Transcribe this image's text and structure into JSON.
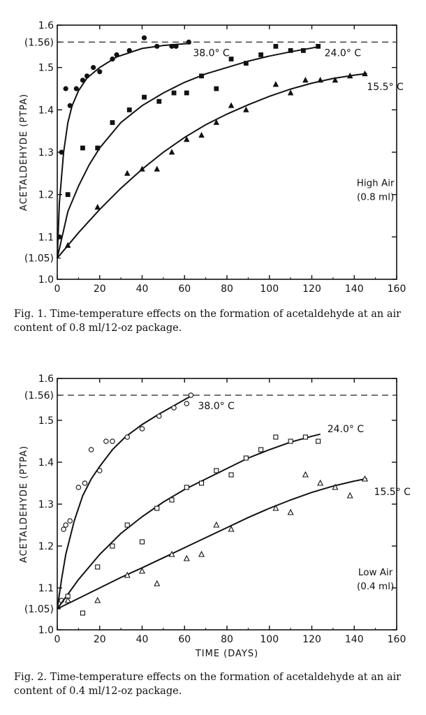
{
  "chart_data": [
    {
      "type": "scatter",
      "title": "",
      "xlabel": "",
      "ylabel": "ACETALDEHYDE (PTPA)",
      "xlim": [
        0,
        160
      ],
      "ylim": [
        1.0,
        1.6
      ],
      "x_ticks": [
        "0",
        "20",
        "40",
        "60",
        "80",
        "100",
        "120",
        "140",
        "160"
      ],
      "y_ticks": [
        "1.0",
        "1.1",
        "1.2",
        "1.3",
        "1.4",
        "1.5",
        "1.6"
      ],
      "y_extra_ticks": [
        {
          "value": 1.05,
          "label": "(1.05)"
        },
        {
          "value": 1.56,
          "label": "(1.56)"
        }
      ],
      "reference_line": {
        "value": 1.56,
        "style": "dashed"
      },
      "annotation": {
        "line1": "High Air",
        "line2": "(0.8 ml)"
      },
      "marker_fill": "filled",
      "series": [
        {
          "name": "38.0° C",
          "marker": "circle",
          "points": [
            [
              1,
              1.1
            ],
            [
              2,
              1.3
            ],
            [
              4,
              1.45
            ],
            [
              6,
              1.41
            ],
            [
              9,
              1.45
            ],
            [
              12,
              1.47
            ],
            [
              14,
              1.48
            ],
            [
              17,
              1.5
            ],
            [
              20,
              1.49
            ],
            [
              26,
              1.52
            ],
            [
              28,
              1.53
            ],
            [
              34,
              1.54
            ],
            [
              41,
              1.57
            ],
            [
              47,
              1.55
            ],
            [
              54,
              1.55
            ],
            [
              56,
              1.55
            ],
            [
              62,
              1.56
            ]
          ],
          "curve": [
            [
              0,
              1.05
            ],
            [
              1,
              1.18
            ],
            [
              3,
              1.3
            ],
            [
              5,
              1.37
            ],
            [
              7,
              1.41
            ],
            [
              10,
              1.445
            ],
            [
              14,
              1.475
            ],
            [
              20,
              1.5
            ],
            [
              28,
              1.525
            ],
            [
              40,
              1.545
            ],
            [
              50,
              1.552
            ],
            [
              60,
              1.556
            ],
            [
              63,
              1.557
            ]
          ]
        },
        {
          "name": "24.0° C",
          "marker": "square",
          "points": [
            [
              5,
              1.2
            ],
            [
              12,
              1.31
            ],
            [
              19,
              1.31
            ],
            [
              26,
              1.37
            ],
            [
              34,
              1.4
            ],
            [
              41,
              1.43
            ],
            [
              48,
              1.42
            ],
            [
              55,
              1.44
            ],
            [
              61,
              1.44
            ],
            [
              68,
              1.48
            ],
            [
              75,
              1.45
            ],
            [
              82,
              1.52
            ],
            [
              89,
              1.51
            ],
            [
              96,
              1.53
            ],
            [
              103,
              1.55
            ],
            [
              110,
              1.54
            ],
            [
              116,
              1.54
            ],
            [
              123,
              1.55
            ]
          ],
          "curve": [
            [
              0,
              1.05
            ],
            [
              5,
              1.16
            ],
            [
              10,
              1.22
            ],
            [
              15,
              1.27
            ],
            [
              20,
              1.31
            ],
            [
              30,
              1.37
            ],
            [
              40,
              1.41
            ],
            [
              50,
              1.44
            ],
            [
              60,
              1.465
            ],
            [
              70,
              1.485
            ],
            [
              80,
              1.5
            ],
            [
              90,
              1.515
            ],
            [
              100,
              1.527
            ],
            [
              110,
              1.537
            ],
            [
              120,
              1.546
            ],
            [
              124,
              1.55
            ]
          ]
        },
        {
          "name": "15.5° C",
          "marker": "triangle",
          "points": [
            [
              5,
              1.08
            ],
            [
              19,
              1.17
            ],
            [
              33,
              1.25
            ],
            [
              40,
              1.26
            ],
            [
              47,
              1.26
            ],
            [
              54,
              1.3
            ],
            [
              61,
              1.33
            ],
            [
              68,
              1.34
            ],
            [
              75,
              1.37
            ],
            [
              82,
              1.41
            ],
            [
              89,
              1.4
            ],
            [
              103,
              1.46
            ],
            [
              110,
              1.44
            ],
            [
              117,
              1.47
            ],
            [
              124,
              1.47
            ],
            [
              131,
              1.47
            ],
            [
              138,
              1.48
            ],
            [
              145,
              1.485
            ]
          ],
          "curve": [
            [
              0,
              1.05
            ],
            [
              10,
              1.11
            ],
            [
              20,
              1.165
            ],
            [
              30,
              1.215
            ],
            [
              40,
              1.26
            ],
            [
              50,
              1.3
            ],
            [
              60,
              1.335
            ],
            [
              70,
              1.365
            ],
            [
              80,
              1.39
            ],
            [
              90,
              1.412
            ],
            [
              100,
              1.432
            ],
            [
              110,
              1.449
            ],
            [
              120,
              1.463
            ],
            [
              130,
              1.474
            ],
            [
              140,
              1.482
            ],
            [
              146,
              1.486
            ]
          ]
        }
      ]
    },
    {
      "type": "scatter",
      "title": "",
      "xlabel": "TIME (DAYS)",
      "ylabel": "ACETALDEHYDE (PTPA)",
      "xlim": [
        0,
        160
      ],
      "ylim": [
        1.0,
        1.6
      ],
      "x_ticks": [
        "0",
        "20",
        "40",
        "60",
        "80",
        "100",
        "120",
        "140",
        "160"
      ],
      "y_ticks": [
        "1.0",
        "1.1",
        "1.2",
        "1.3",
        "1.4",
        "1.5",
        "1.6"
      ],
      "y_extra_ticks": [
        {
          "value": 1.05,
          "label": "(1.05)"
        },
        {
          "value": 1.56,
          "label": "(1.56)"
        }
      ],
      "reference_line": {
        "value": 1.56,
        "style": "dashed"
      },
      "annotation": {
        "line1": "Low Air",
        "line2": "(0.4 ml)"
      },
      "marker_fill": "open",
      "series": [
        {
          "name": "38.0° C",
          "marker": "circle",
          "points": [
            [
              2,
              1.07
            ],
            [
              3,
              1.24
            ],
            [
              4,
              1.25
            ],
            [
              6,
              1.26
            ],
            [
              10,
              1.34
            ],
            [
              13,
              1.35
            ],
            [
              16,
              1.43
            ],
            [
              20,
              1.38
            ],
            [
              23,
              1.45
            ],
            [
              26,
              1.45
            ],
            [
              33,
              1.46
            ],
            [
              40,
              1.48
            ],
            [
              48,
              1.51
            ],
            [
              55,
              1.53
            ],
            [
              61,
              1.54
            ],
            [
              63,
              1.56
            ]
          ],
          "curve": [
            [
              0,
              1.05
            ],
            [
              2,
              1.12
            ],
            [
              4,
              1.18
            ],
            [
              8,
              1.26
            ],
            [
              12,
              1.32
            ],
            [
              16,
              1.36
            ],
            [
              20,
              1.39
            ],
            [
              26,
              1.43
            ],
            [
              32,
              1.46
            ],
            [
              40,
              1.49
            ],
            [
              48,
              1.515
            ],
            [
              56,
              1.538
            ],
            [
              62,
              1.555
            ],
            [
              64,
              1.56
            ]
          ]
        },
        {
          "name": "24.0° C",
          "marker": "square",
          "points": [
            [
              5,
              1.08
            ],
            [
              12,
              1.04
            ],
            [
              19,
              1.15
            ],
            [
              26,
              1.2
            ],
            [
              33,
              1.25
            ],
            [
              40,
              1.21
            ],
            [
              47,
              1.29
            ],
            [
              54,
              1.31
            ],
            [
              61,
              1.34
            ],
            [
              68,
              1.35
            ],
            [
              75,
              1.38
            ],
            [
              82,
              1.37
            ],
            [
              89,
              1.41
            ],
            [
              96,
              1.43
            ],
            [
              103,
              1.46
            ],
            [
              110,
              1.45
            ],
            [
              117,
              1.46
            ],
            [
              123,
              1.45
            ]
          ],
          "curve": [
            [
              0,
              1.05
            ],
            [
              10,
              1.12
            ],
            [
              20,
              1.18
            ],
            [
              30,
              1.23
            ],
            [
              40,
              1.27
            ],
            [
              50,
              1.305
            ],
            [
              60,
              1.335
            ],
            [
              70,
              1.36
            ],
            [
              80,
              1.385
            ],
            [
              90,
              1.41
            ],
            [
              100,
              1.43
            ],
            [
              110,
              1.448
            ],
            [
              120,
              1.462
            ],
            [
              124,
              1.467
            ]
          ]
        },
        {
          "name": "15.5° C",
          "marker": "triangle",
          "points": [
            [
              5,
              1.07
            ],
            [
              19,
              1.07
            ],
            [
              33,
              1.13
            ],
            [
              40,
              1.14
            ],
            [
              47,
              1.11
            ],
            [
              54,
              1.18
            ],
            [
              61,
              1.17
            ],
            [
              68,
              1.18
            ],
            [
              75,
              1.25
            ],
            [
              82,
              1.24
            ],
            [
              103,
              1.29
            ],
            [
              110,
              1.28
            ],
            [
              117,
              1.37
            ],
            [
              124,
              1.35
            ],
            [
              131,
              1.34
            ],
            [
              138,
              1.32
            ],
            [
              145,
              1.36
            ]
          ],
          "curve": [
            [
              0,
              1.05
            ],
            [
              10,
              1.075
            ],
            [
              20,
              1.1
            ],
            [
              30,
              1.125
            ],
            [
              40,
              1.148
            ],
            [
              50,
              1.172
            ],
            [
              60,
              1.196
            ],
            [
              70,
              1.22
            ],
            [
              80,
              1.244
            ],
            [
              90,
              1.268
            ],
            [
              100,
              1.29
            ],
            [
              110,
              1.31
            ],
            [
              120,
              1.328
            ],
            [
              130,
              1.343
            ],
            [
              140,
              1.355
            ],
            [
              146,
              1.361
            ]
          ]
        }
      ]
    }
  ],
  "figures": {
    "fig1_caption": "Fig. 1. Time-temperature effects on the formation of acetaldehyde at an air content of 0.8 ml/12-oz package.",
    "fig2_caption": "Fig. 2. Time-temperature effects on the formation of acetaldehyde at an air content of 0.4 ml/12-oz package."
  }
}
